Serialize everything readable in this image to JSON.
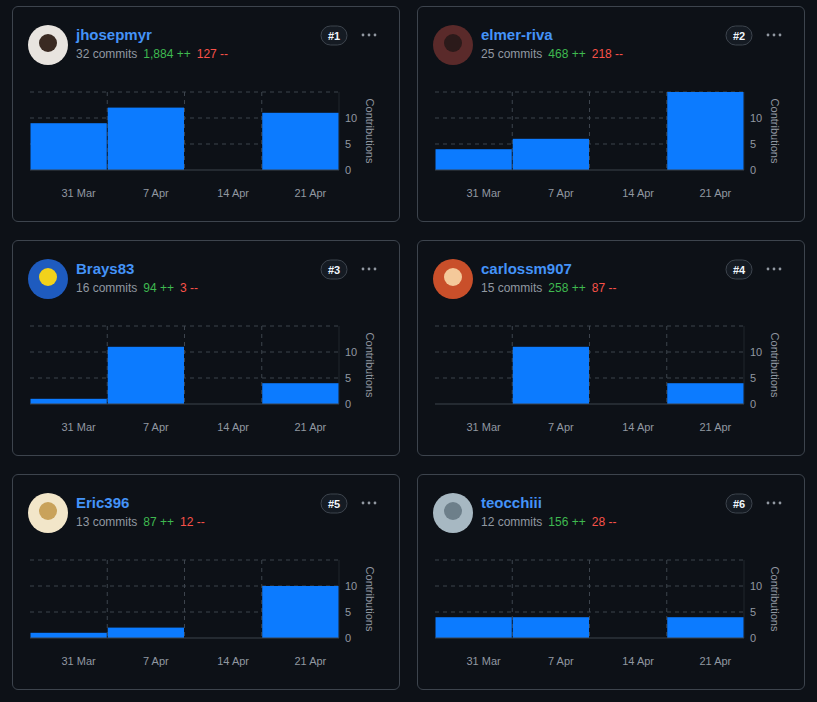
{
  "chart_data": [
    {
      "type": "bar",
      "title": "jhosepmyr",
      "subtitle": "32 commits",
      "annotations": [
        "1,884 ++",
        "127 --",
        "#1"
      ],
      "y_label": "Contributions",
      "categories": [
        "31 Mar",
        "7 Apr",
        "14 Apr",
        "21 Apr"
      ],
      "values": [
        9,
        12,
        0,
        11
      ],
      "color": "#0c7bff",
      "ylim": [
        0,
        15
      ],
      "yticks": [
        0,
        5,
        10
      ],
      "grid": true
    },
    {
      "type": "bar",
      "title": "elmer-riva",
      "subtitle": "25 commits",
      "annotations": [
        "468 ++",
        "218 --",
        "#2"
      ],
      "y_label": "Contributions",
      "categories": [
        "31 Mar",
        "7 Apr",
        "14 Apr",
        "21 Apr"
      ],
      "values": [
        4,
        6,
        0,
        15
      ],
      "color": "#0c7bff",
      "ylim": [
        0,
        15
      ],
      "yticks": [
        0,
        5,
        10
      ],
      "grid": true
    },
    {
      "type": "bar",
      "title": "Brays83",
      "subtitle": "16 commits",
      "annotations": [
        "94 ++",
        "3 --",
        "#3"
      ],
      "y_label": "Contributions",
      "categories": [
        "31 Mar",
        "7 Apr",
        "14 Apr",
        "21 Apr"
      ],
      "values": [
        1,
        11,
        0,
        4
      ],
      "color": "#0c7bff",
      "ylim": [
        0,
        15
      ],
      "yticks": [
        0,
        5,
        10
      ],
      "grid": true
    },
    {
      "type": "bar",
      "title": "carlossm907",
      "subtitle": "15 commits",
      "annotations": [
        "258 ++",
        "87 --",
        "#4"
      ],
      "y_label": "Contributions",
      "categories": [
        "31 Mar",
        "7 Apr",
        "14 Apr",
        "21 Apr"
      ],
      "values": [
        0,
        11,
        0,
        4
      ],
      "color": "#0c7bff",
      "ylim": [
        0,
        15
      ],
      "yticks": [
        0,
        5,
        10
      ],
      "grid": true
    },
    {
      "type": "bar",
      "title": "Eric396",
      "subtitle": "13 commits",
      "annotations": [
        "87 ++",
        "12 --",
        "#5"
      ],
      "y_label": "Contributions",
      "categories": [
        "31 Mar",
        "7 Apr",
        "14 Apr",
        "21 Apr"
      ],
      "values": [
        1,
        2,
        0,
        10
      ],
      "color": "#0c7bff",
      "ylim": [
        0,
        15
      ],
      "yticks": [
        0,
        5,
        10
      ],
      "grid": true
    },
    {
      "type": "bar",
      "title": "teocchiii",
      "subtitle": "12 commits",
      "annotations": [
        "156 ++",
        "28 --",
        "#6"
      ],
      "y_label": "Contributions",
      "categories": [
        "31 Mar",
        "7 Apr",
        "14 Apr",
        "21 Apr"
      ],
      "values": [
        4,
        4,
        0,
        4
      ],
      "color": "#0c7bff",
      "ylim": [
        0,
        15
      ],
      "yticks": [
        0,
        5,
        10
      ],
      "grid": true
    }
  ]
}
